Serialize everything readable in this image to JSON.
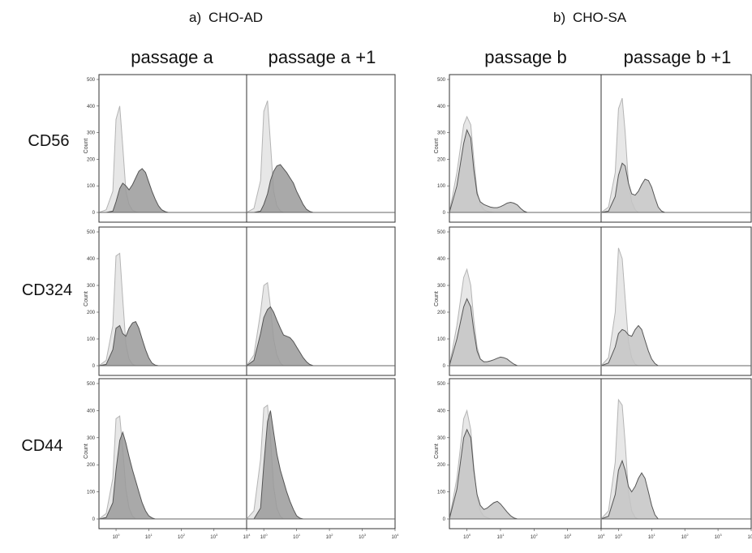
{
  "figure": {
    "panel_titles": {
      "a": {
        "letter": "a)",
        "name": "CHO-AD"
      },
      "b": {
        "letter": "b)",
        "name": "CHO-SA"
      }
    },
    "column_headers": [
      "passage a",
      "passage a +1",
      "passage b",
      "passage b +1"
    ],
    "row_labels": [
      "CD56",
      "CD324",
      "CD44"
    ]
  },
  "colors": {
    "control_fill": "#e7e7e7",
    "control_stroke": "#b4b4b4",
    "sample_fill_dark": "#9a9a9a",
    "sample_fill_light": "#c4c4c4",
    "sample_stroke": "#555555",
    "frame": "#333333"
  },
  "chart_data": {
    "type": "area",
    "description_axes": {
      "y_label": "Count",
      "y_ticks": [
        "0",
        "100",
        "200",
        "300",
        "400",
        "500"
      ],
      "ylim": [
        0,
        500
      ],
      "x_ticks": [
        "10^0",
        "10^1",
        "10^2",
        "10^3",
        "10^4"
      ],
      "x_scale": "log",
      "xlim": [
        0.3,
        10000
      ]
    },
    "x": [
      0.3,
      0.5,
      0.8,
      1.0,
      1.3,
      1.6,
      2.0,
      2.5,
      3.2,
      4.0,
      5.0,
      6.3,
      8.0,
      10,
      12.6,
      15.8,
      20,
      25,
      32,
      40,
      50,
      63,
      80,
      100,
      130,
      200,
      400,
      1000,
      10000
    ],
    "panels": [
      {
        "row": "CD56",
        "column": "passage a",
        "series": [
          {
            "role": "control",
            "values": [
              0,
              10,
              80,
              350,
              400,
              250,
              80,
              30,
              8,
              2,
              0,
              0,
              0,
              0,
              0,
              0,
              0,
              0,
              0,
              0,
              0,
              0,
              0,
              0,
              0,
              0,
              0,
              0,
              0
            ]
          },
          {
            "role": "sample",
            "values": [
              0,
              0,
              5,
              40,
              90,
              110,
              100,
              85,
              105,
              130,
              155,
              165,
              150,
              115,
              80,
              50,
              25,
              10,
              3,
              0,
              0,
              0,
              0,
              0,
              0,
              0,
              0,
              0,
              0
            ]
          }
        ]
      },
      {
        "row": "CD56",
        "column": "passage a +1",
        "series": [
          {
            "role": "control",
            "values": [
              0,
              15,
              120,
              380,
              420,
              260,
              80,
              25,
              5,
              0,
              0,
              0,
              0,
              0,
              0,
              0,
              0,
              0,
              0,
              0,
              0,
              0,
              0,
              0,
              0,
              0,
              0,
              0,
              0
            ]
          },
          {
            "role": "sample",
            "values": [
              0,
              0,
              5,
              30,
              70,
              120,
              155,
              175,
              180,
              165,
              150,
              130,
              110,
              80,
              55,
              30,
              12,
              4,
              0,
              0,
              0,
              0,
              0,
              0,
              0,
              0,
              0,
              0,
              0
            ]
          }
        ]
      },
      {
        "row": "CD56",
        "column": "passage b",
        "series": [
          {
            "role": "control",
            "values": [
              0,
              150,
              330,
              360,
              330,
              200,
              80,
              30,
              10,
              5,
              2,
              0,
              0,
              0,
              0,
              0,
              0,
              0,
              0,
              0,
              0,
              0,
              0,
              0,
              0,
              0,
              0,
              0,
              0
            ]
          },
          {
            "role": "sample",
            "values": [
              0,
              100,
              260,
              310,
              280,
              160,
              70,
              40,
              30,
              25,
              20,
              18,
              18,
              22,
              28,
              35,
              38,
              35,
              28,
              15,
              5,
              0,
              0,
              0,
              0,
              0,
              0,
              0,
              0
            ]
          }
        ]
      },
      {
        "row": "CD56",
        "column": "passage b +1",
        "series": [
          {
            "role": "control",
            "values": [
              0,
              20,
              150,
              390,
              430,
              300,
              110,
              40,
              10,
              0,
              0,
              0,
              0,
              0,
              0,
              0,
              0,
              0,
              0,
              0,
              0,
              0,
              0,
              0,
              0,
              0,
              0,
              0,
              0
            ]
          },
          {
            "role": "sample",
            "values": [
              0,
              5,
              60,
              140,
              185,
              175,
              110,
              70,
              65,
              80,
              105,
              125,
              120,
              95,
              55,
              20,
              5,
              0,
              0,
              0,
              0,
              0,
              0,
              0,
              0,
              0,
              0,
              0,
              0
            ]
          }
        ]
      },
      {
        "row": "CD324",
        "column": "passage a",
        "series": [
          {
            "role": "control",
            "values": [
              0,
              20,
              150,
              410,
              420,
              250,
              80,
              25,
              5,
              0,
              0,
              0,
              0,
              0,
              0,
              0,
              0,
              0,
              0,
              0,
              0,
              0,
              0,
              0,
              0,
              0,
              0,
              0,
              0
            ]
          },
          {
            "role": "sample",
            "values": [
              0,
              5,
              60,
              140,
              150,
              120,
              110,
              140,
              160,
              165,
              140,
              100,
              60,
              30,
              10,
              2,
              0,
              0,
              0,
              0,
              0,
              0,
              0,
              0,
              0,
              0,
              0,
              0,
              0
            ]
          }
        ]
      },
      {
        "row": "CD324",
        "column": "passage a +1",
        "series": [
          {
            "role": "control",
            "values": [
              0,
              40,
              200,
              300,
              310,
              220,
              100,
              40,
              10,
              0,
              0,
              0,
              0,
              0,
              0,
              0,
              0,
              0,
              0,
              0,
              0,
              0,
              0,
              0,
              0,
              0,
              0,
              0,
              0
            ]
          },
          {
            "role": "sample",
            "values": [
              0,
              20,
              120,
              180,
              210,
              220,
              200,
              170,
              140,
              115,
              110,
              105,
              90,
              70,
              50,
              30,
              15,
              5,
              0,
              0,
              0,
              0,
              0,
              0,
              0,
              0,
              0,
              0,
              0
            ]
          }
        ]
      },
      {
        "row": "CD324",
        "column": "passage b",
        "series": [
          {
            "role": "control",
            "values": [
              0,
              150,
              330,
              360,
              300,
              170,
              70,
              25,
              10,
              5,
              0,
              0,
              0,
              0,
              0,
              0,
              0,
              0,
              0,
              0,
              0,
              0,
              0,
              0,
              0,
              0,
              0,
              0,
              0
            ]
          },
          {
            "role": "sample",
            "values": [
              0,
              100,
              220,
              250,
              220,
              130,
              55,
              25,
              15,
              15,
              18,
              22,
              28,
              32,
              30,
              25,
              15,
              6,
              0,
              0,
              0,
              0,
              0,
              0,
              0,
              0,
              0,
              0,
              0
            ]
          }
        ]
      },
      {
        "row": "CD324",
        "column": "passage b +1",
        "series": [
          {
            "role": "control",
            "values": [
              0,
              30,
              200,
              440,
              400,
              250,
              90,
              30,
              5,
              0,
              0,
              0,
              0,
              0,
              0,
              0,
              0,
              0,
              0,
              0,
              0,
              0,
              0,
              0,
              0,
              0,
              0,
              0,
              0
            ]
          },
          {
            "role": "sample",
            "values": [
              0,
              10,
              70,
              120,
              135,
              130,
              115,
              110,
              135,
              150,
              135,
              95,
              55,
              25,
              8,
              0,
              0,
              0,
              0,
              0,
              0,
              0,
              0,
              0,
              0,
              0,
              0,
              0,
              0
            ]
          }
        ]
      },
      {
        "row": "CD44",
        "column": "passage a",
        "series": [
          {
            "role": "control",
            "values": [
              0,
              20,
              150,
              370,
              380,
              260,
              110,
              40,
              10,
              0,
              0,
              0,
              0,
              0,
              0,
              0,
              0,
              0,
              0,
              0,
              0,
              0,
              0,
              0,
              0,
              0,
              0,
              0,
              0
            ]
          },
          {
            "role": "sample",
            "values": [
              0,
              5,
              60,
              180,
              290,
              320,
              280,
              230,
              180,
              140,
              100,
              60,
              30,
              12,
              4,
              0,
              0,
              0,
              0,
              0,
              0,
              0,
              0,
              0,
              0,
              0,
              0,
              0,
              0
            ]
          }
        ]
      },
      {
        "row": "CD44",
        "column": "passage a +1",
        "series": [
          {
            "role": "control",
            "values": [
              0,
              30,
              220,
              410,
              420,
              300,
              120,
              40,
              10,
              0,
              0,
              0,
              0,
              0,
              0,
              0,
              0,
              0,
              0,
              0,
              0,
              0,
              0,
              0,
              0,
              0,
              0,
              0,
              0
            ]
          },
          {
            "role": "sample",
            "values": [
              0,
              0,
              40,
              200,
              360,
              400,
              320,
              240,
              180,
              140,
              100,
              65,
              35,
              12,
              3,
              0,
              0,
              0,
              0,
              0,
              0,
              0,
              0,
              0,
              0,
              0,
              0,
              0,
              0
            ]
          }
        ]
      },
      {
        "row": "CD44",
        "column": "passage b",
        "series": [
          {
            "role": "control",
            "values": [
              0,
              150,
              370,
              400,
              330,
              190,
              80,
              30,
              10,
              5,
              0,
              0,
              0,
              0,
              0,
              0,
              0,
              0,
              0,
              0,
              0,
              0,
              0,
              0,
              0,
              0,
              0,
              0,
              0
            ]
          },
          {
            "role": "sample",
            "values": [
              0,
              110,
              300,
              330,
              300,
              180,
              90,
              50,
              35,
              40,
              50,
              60,
              65,
              55,
              40,
              25,
              12,
              4,
              0,
              0,
              0,
              0,
              0,
              0,
              0,
              0,
              0,
              0,
              0
            ]
          }
        ]
      },
      {
        "row": "CD44",
        "column": "passage b +1",
        "series": [
          {
            "role": "control",
            "values": [
              0,
              30,
              210,
              440,
              420,
              280,
              100,
              30,
              5,
              0,
              0,
              0,
              0,
              0,
              0,
              0,
              0,
              0,
              0,
              0,
              0,
              0,
              0,
              0,
              0,
              0,
              0,
              0,
              0
            ]
          },
          {
            "role": "sample",
            "values": [
              0,
              10,
              90,
              180,
              215,
              180,
              120,
              100,
              120,
              150,
              170,
              150,
              100,
              50,
              15,
              0,
              0,
              0,
              0,
              0,
              0,
              0,
              0,
              0,
              0,
              0,
              0,
              0,
              0
            ]
          }
        ]
      }
    ]
  }
}
